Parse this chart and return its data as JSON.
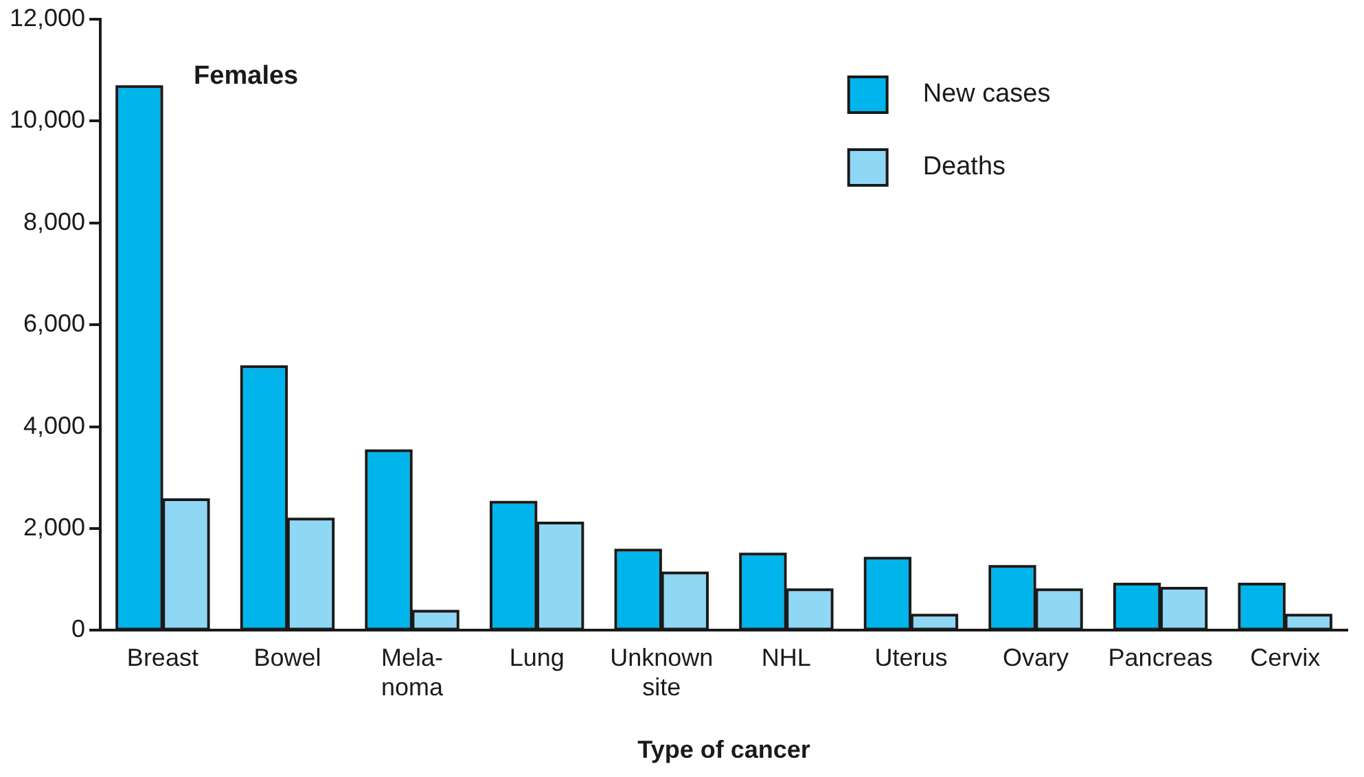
{
  "chart_data": {
    "type": "bar",
    "xlabel": "Type of cancer",
    "annotations": [
      "Females"
    ],
    "categories": [
      "Breast",
      "Bowel",
      "Mela-\nnoma",
      "Lung",
      "Unknown\nsite",
      "NHL",
      "Uterus",
      "Ovary",
      "Pancreas",
      "Cervix"
    ],
    "series": [
      {
        "name": "New cases",
        "color": "#00b4ec",
        "values": [
          10650,
          5150,
          3500,
          2490,
          1550,
          1470,
          1390,
          1230,
          880,
          880
        ]
      },
      {
        "name": "Deaths",
        "color": "#8fd8f5",
        "values": [
          2540,
          2160,
          350,
          2080,
          1100,
          770,
          270,
          770,
          800,
          270
        ]
      }
    ],
    "ylim": [
      0,
      12000
    ],
    "yticks": [
      {
        "value": 0,
        "label": "0"
      },
      {
        "value": 2000,
        "label": "2,000"
      },
      {
        "value": 4000,
        "label": "4,000"
      },
      {
        "value": 6000,
        "label": "6,000"
      },
      {
        "value": 8000,
        "label": "8,000"
      },
      {
        "value": 10000,
        "label": "10,000"
      },
      {
        "value": 12000,
        "label": "12,000"
      }
    ],
    "grid": false,
    "legend": "top right"
  }
}
